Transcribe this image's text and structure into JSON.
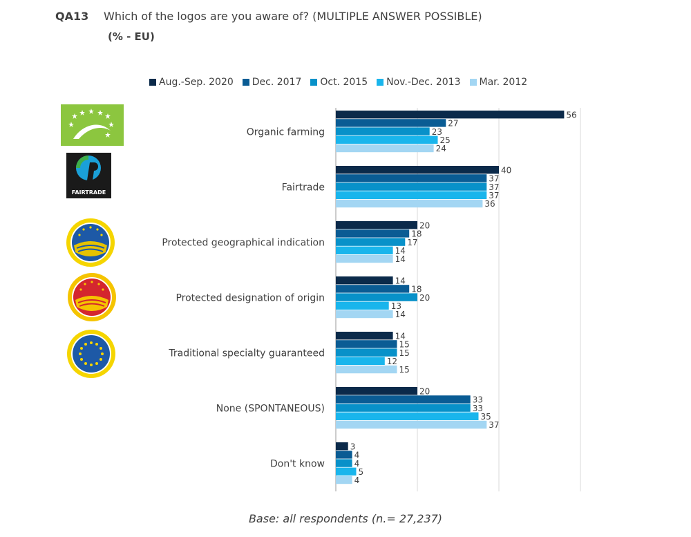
{
  "header": {
    "qid": "QA13",
    "question": "Which of the logos are you aware of? (MULTIPLE ANSWER POSSIBLE)",
    "subtitle": "(% - EU)"
  },
  "footer": {
    "base": "Base: all respondents (n.= 27,237)"
  },
  "logos": {
    "organic": {
      "icon": "eu-organic-leaf-logo"
    },
    "fairtrade": {
      "icon": "fairtrade-logo",
      "text": "FAIRTRADE"
    },
    "pgi": {
      "icon": "pgi-seal-logo"
    },
    "pdo": {
      "icon": "pdo-seal-logo"
    },
    "tsg": {
      "icon": "tsg-seal-logo"
    }
  },
  "chart_data": {
    "type": "bar",
    "orientation": "horizontal",
    "title": "",
    "xlabel": "",
    "ylabel": "",
    "xlim": [
      0,
      60
    ],
    "grid": true,
    "legend_position": "top",
    "categories": [
      "Organic farming",
      "Fairtrade",
      "Protected geographical indication",
      "Protected designation of origin",
      "Traditional specialty guaranteed",
      "None (SPONTANEOUS)",
      "Don't know"
    ],
    "series": [
      {
        "name": "Aug.-Sep. 2020",
        "color": "#0b2a4a",
        "values": [
          56,
          40,
          20,
          14,
          14,
          20,
          3
        ]
      },
      {
        "name": "Dec. 2017",
        "color": "#0a5c94",
        "values": [
          27,
          37,
          18,
          18,
          15,
          33,
          4
        ]
      },
      {
        "name": "Oct. 2015",
        "color": "#0891c9",
        "values": [
          23,
          37,
          17,
          20,
          15,
          33,
          4
        ]
      },
      {
        "name": "Nov.-Dec. 2013",
        "color": "#19b5ec",
        "values": [
          25,
          37,
          14,
          13,
          12,
          35,
          5
        ]
      },
      {
        "name": "Mar. 2012",
        "color": "#a3d6f3",
        "values": [
          24,
          36,
          14,
          14,
          15,
          37,
          4
        ]
      }
    ]
  }
}
